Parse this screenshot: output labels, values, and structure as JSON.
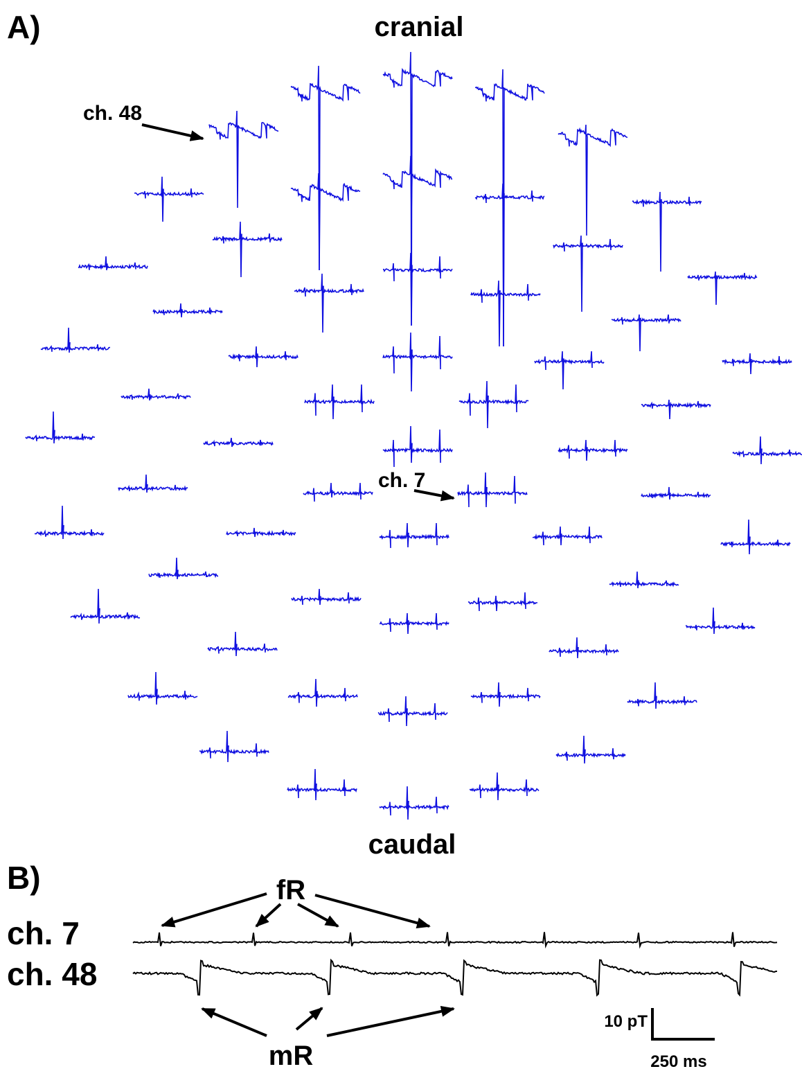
{
  "panel_a": {
    "label": "A)",
    "top_label": "cranial",
    "bottom_label": "caudal",
    "callouts": [
      "ch. 48",
      "ch. 7"
    ]
  },
  "panel_b": {
    "label": "B)",
    "channels": [
      "ch. 7",
      "ch. 48"
    ],
    "fetal_marker": "fR",
    "maternal_marker": "mR",
    "scale_amplitude": "10 pT",
    "scale_time": "250 ms"
  }
}
